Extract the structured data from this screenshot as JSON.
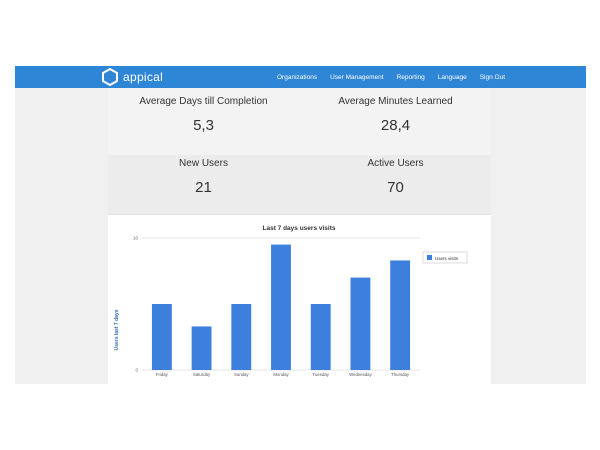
{
  "app": {
    "logo_text": "appical"
  },
  "nav": [
    {
      "label": "Organizations"
    },
    {
      "label": "User Management"
    },
    {
      "label": "Reporting"
    },
    {
      "label": "Language"
    },
    {
      "label": "Sign Out"
    }
  ],
  "stats": [
    {
      "label": "Average Days till Completion",
      "value": "5,3"
    },
    {
      "label": "Average Minutes Learned",
      "value": "28,4"
    },
    {
      "label": "New Users",
      "value": "21"
    },
    {
      "label": "Active Users",
      "value": "70"
    }
  ],
  "colors": {
    "nav": "#2f86d6",
    "bar": "#3d7fdc"
  },
  "chart_data": {
    "type": "bar",
    "title": "Last 7 days users visits",
    "ylabel": "Users last 7 days",
    "xlabel": "",
    "categories": [
      "Friday",
      "Saturday",
      "Sunday",
      "Monday",
      "Tuesday",
      "Wednesday",
      "Thursday"
    ],
    "series": [
      {
        "name": "Users visits",
        "values": [
          5,
          3.3,
          5,
          9.5,
          5,
          7,
          8.3
        ]
      }
    ],
    "yticks": [
      "0",
      "10"
    ],
    "ylim": [
      0,
      10
    ],
    "grid": true,
    "legend": "right"
  }
}
